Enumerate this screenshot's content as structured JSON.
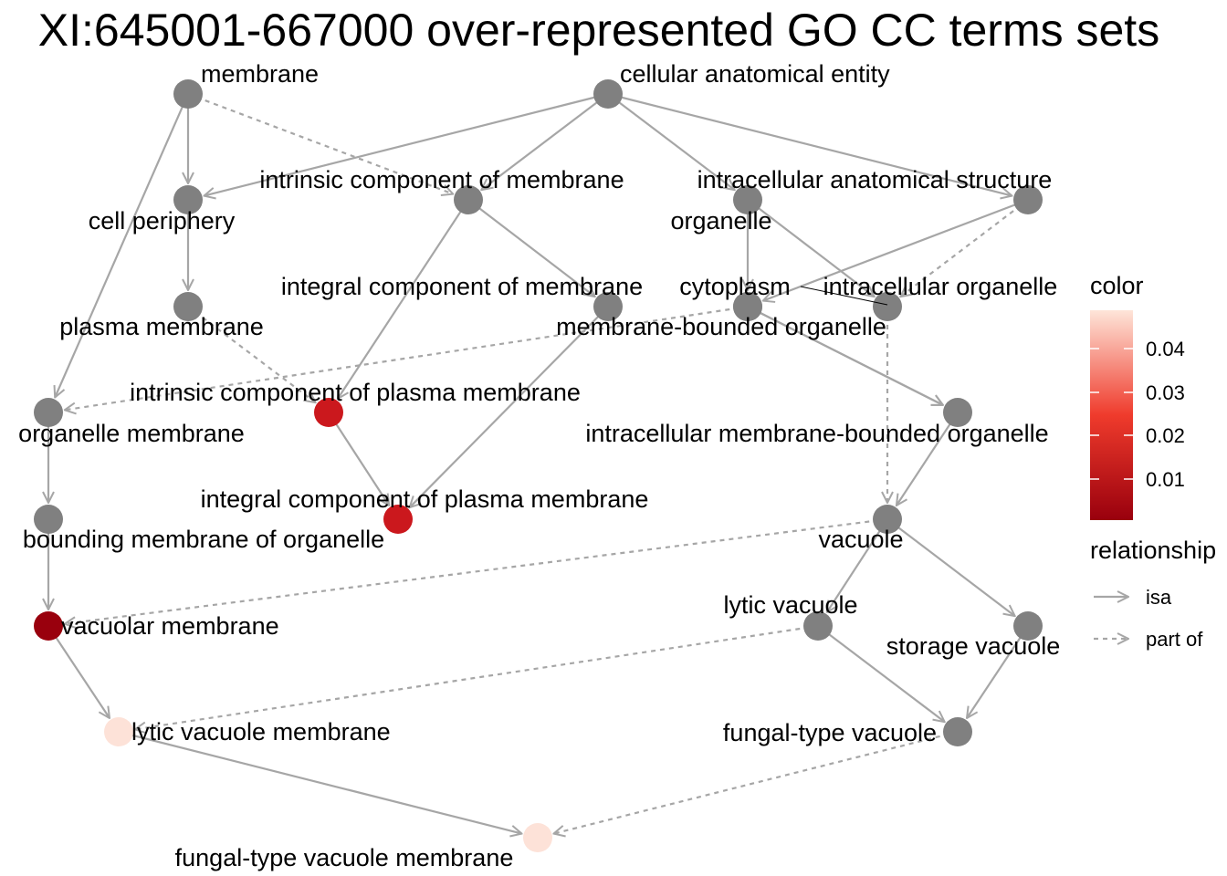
{
  "title": "XI:645001-667000 over-represented GO CC terms sets",
  "nodes": [
    {
      "id": "membrane",
      "label": "membrane",
      "fill": "#808080"
    },
    {
      "id": "cellular-anatomical-entity",
      "label": "cellular anatomical entity",
      "fill": "#808080"
    },
    {
      "id": "cell-periphery",
      "label": "cell periphery",
      "fill": "#808080"
    },
    {
      "id": "intrinsic-component-of-membrane",
      "label": "intrinsic component of membrane",
      "fill": "#808080"
    },
    {
      "id": "organelle",
      "label": "organelle",
      "fill": "#808080"
    },
    {
      "id": "intracellular-anatomical-structure",
      "label": "intracellular anatomical structure",
      "fill": "#808080"
    },
    {
      "id": "plasma-membrane",
      "label": "plasma membrane",
      "fill": "#808080"
    },
    {
      "id": "integral-component-of-membrane",
      "label": "integral component of membrane",
      "fill": "#808080"
    },
    {
      "id": "cytoplasm",
      "label": "cytoplasm",
      "fill": "#808080"
    },
    {
      "id": "intracellular-organelle",
      "label": "intracellular organelle",
      "fill": "#808080"
    },
    {
      "id": "membrane-bounded-organelle",
      "label": "membrane-bounded organelle",
      "fill": "#808080"
    },
    {
      "id": "organelle-membrane",
      "label": "organelle membrane",
      "fill": "#808080"
    },
    {
      "id": "intrinsic-component-of-plasma-membrane",
      "label": "intrinsic component of plasma membrane",
      "fill": "#cb181d"
    },
    {
      "id": "intracellular-membrane-bounded-organelle",
      "label": "intracellular membrane-bounded organelle",
      "fill": "#808080"
    },
    {
      "id": "bounding-membrane-of-organelle",
      "label": "bounding membrane of organelle",
      "fill": "#808080"
    },
    {
      "id": "integral-component-of-plasma-membrane",
      "label": "integral component of plasma membrane",
      "fill": "#cb181d"
    },
    {
      "id": "vacuole",
      "label": "vacuole",
      "fill": "#808080"
    },
    {
      "id": "vacuolar-membrane",
      "label": "vacuolar membrane",
      "fill": "#99000d"
    },
    {
      "id": "lytic-vacuole",
      "label": "lytic vacuole",
      "fill": "#808080"
    },
    {
      "id": "storage-vacuole",
      "label": "storage vacuole",
      "fill": "#808080"
    },
    {
      "id": "lytic-vacuole-membrane",
      "label": "lytic vacuole membrane",
      "fill": "#fde2d8"
    },
    {
      "id": "fungal-type-vacuole",
      "label": "fungal-type vacuole",
      "fill": "#808080"
    },
    {
      "id": "fungal-type-vacuole-membrane",
      "label": "fungal-type vacuole membrane",
      "fill": "#fde2d8"
    }
  ],
  "edges": [
    {
      "from": "membrane",
      "to": "cell-periphery",
      "type": "isa"
    },
    {
      "from": "membrane",
      "to": "organelle-membrane",
      "type": "isa"
    },
    {
      "from": "membrane",
      "to": "intrinsic-component-of-membrane",
      "type": "part of"
    },
    {
      "from": "cellular-anatomical-entity",
      "to": "cell-periphery",
      "type": "isa"
    },
    {
      "from": "cellular-anatomical-entity",
      "to": "intrinsic-component-of-membrane",
      "type": "isa"
    },
    {
      "from": "cellular-anatomical-entity",
      "to": "organelle",
      "type": "isa"
    },
    {
      "from": "cellular-anatomical-entity",
      "to": "intracellular-anatomical-structure",
      "type": "isa"
    },
    {
      "from": "cell-periphery",
      "to": "plasma-membrane",
      "type": "isa"
    },
    {
      "from": "intrinsic-component-of-membrane",
      "to": "integral-component-of-membrane",
      "type": "isa"
    },
    {
      "from": "intrinsic-component-of-membrane",
      "to": "intrinsic-component-of-plasma-membrane",
      "type": "isa"
    },
    {
      "from": "organelle",
      "to": "cytoplasm",
      "type": "isa"
    },
    {
      "from": "organelle",
      "to": "intracellular-organelle",
      "type": "isa"
    },
    {
      "from": "intracellular-anatomical-structure",
      "to": "membrane-bounded-organelle",
      "type": "isa"
    },
    {
      "from": "intracellular-anatomical-structure",
      "to": "intracellular-organelle",
      "type": "part of"
    },
    {
      "from": "plasma-membrane",
      "to": "intrinsic-component-of-plasma-membrane",
      "type": "part of"
    },
    {
      "from": "integral-component-of-membrane",
      "to": "integral-component-of-plasma-membrane",
      "type": "isa"
    },
    {
      "from": "cytoplasm",
      "to": "organelle-membrane",
      "type": "part of"
    },
    {
      "from": "cytoplasm",
      "to": "intracellular-membrane-bounded-organelle",
      "type": "isa"
    },
    {
      "from": "intracellular-organelle",
      "to": "vacuole",
      "type": "part of"
    },
    {
      "from": "membrane-bounded-organelle",
      "to": "intracellular-membrane-bounded-organelle",
      "type": "isa"
    },
    {
      "from": "intrinsic-component-of-plasma-membrane",
      "to": "integral-component-of-plasma-membrane",
      "type": "isa"
    },
    {
      "from": "organelle-membrane",
      "to": "bounding-membrane-of-organelle",
      "type": "isa"
    },
    {
      "from": "intracellular-membrane-bounded-organelle",
      "to": "vacuole",
      "type": "isa"
    },
    {
      "from": "bounding-membrane-of-organelle",
      "to": "vacuolar-membrane",
      "type": "isa"
    },
    {
      "from": "vacuole",
      "to": "vacuolar-membrane",
      "type": "part of"
    },
    {
      "from": "vacuole",
      "to": "lytic-vacuole",
      "type": "isa"
    },
    {
      "from": "vacuole",
      "to": "storage-vacuole",
      "type": "isa"
    },
    {
      "from": "vacuolar-membrane",
      "to": "lytic-vacuole-membrane",
      "type": "isa"
    },
    {
      "from": "lytic-vacuole",
      "to": "lytic-vacuole-membrane",
      "type": "part of"
    },
    {
      "from": "lytic-vacuole",
      "to": "fungal-type-vacuole",
      "type": "isa"
    },
    {
      "from": "storage-vacuole",
      "to": "fungal-type-vacuole",
      "type": "isa"
    },
    {
      "from": "lytic-vacuole-membrane",
      "to": "fungal-type-vacuole-membrane",
      "type": "isa"
    },
    {
      "from": "fungal-type-vacuole",
      "to": "fungal-type-vacuole-membrane",
      "type": "part of"
    }
  ],
  "legend": {
    "color_title": "color",
    "color_ticks": [
      "0.04",
      "0.03",
      "0.02",
      "0.01"
    ],
    "color_low": "#99000d",
    "color_mid": "#ef3b2c",
    "color_high": "#fee5d9",
    "relationship_title": "relationship",
    "relationship_items": [
      {
        "label": "isa",
        "style": "solid"
      },
      {
        "label": "part of",
        "style": "dashed"
      }
    ]
  },
  "colors": {
    "edge": "#a6a6a6",
    "node_default": "#808080"
  }
}
